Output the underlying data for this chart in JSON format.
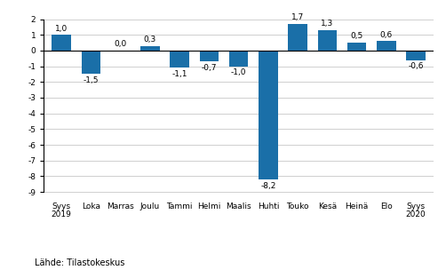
{
  "categories": [
    "Syys\n2019",
    "Loka",
    "Marras",
    "Joulu",
    "Tammi",
    "Helmi",
    "Maalis",
    "Huhti",
    "Touko",
    "Kesä",
    "Heinä",
    "Elo",
    "Syys\n2020"
  ],
  "values": [
    1.0,
    -1.5,
    0.0,
    0.3,
    -1.1,
    -0.7,
    -1.0,
    -8.2,
    1.7,
    1.3,
    0.5,
    0.6,
    -0.6
  ],
  "bar_color": "#1a6fa8",
  "ylim": [
    -9.5,
    2.7
  ],
  "yticks": [
    -9,
    -8,
    -7,
    -6,
    -5,
    -4,
    -3,
    -2,
    -1,
    0,
    1,
    2
  ],
  "source_text": "Lähde: Tilastokeskus",
  "label_fontsize": 6.5,
  "tick_fontsize": 6.5,
  "source_fontsize": 7.0,
  "background_color": "#ffffff",
  "grid_color": "#c8c8c8"
}
